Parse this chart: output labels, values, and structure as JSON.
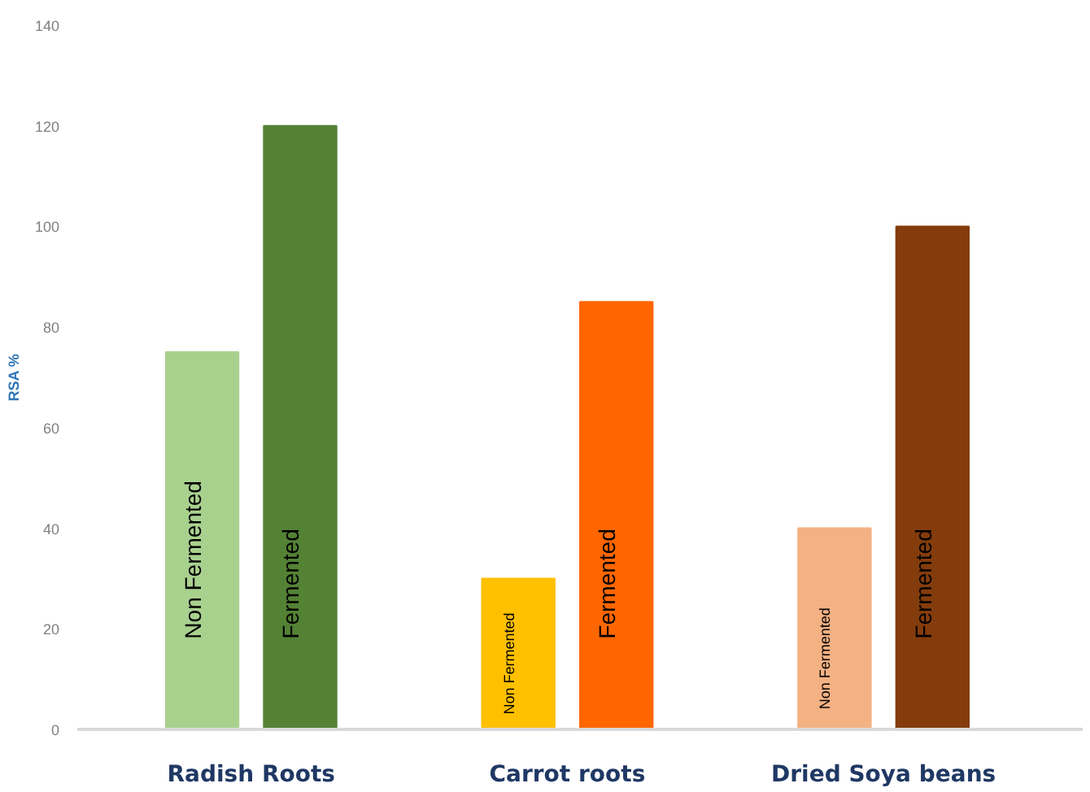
{
  "chart_data": {
    "type": "bar",
    "ylabel": "RSA %",
    "categories": [
      "Radish Roots",
      "Carrot roots",
      "Dried Soya beans"
    ],
    "series": [
      {
        "name": "Non Fermented",
        "colors": [
          "#a9d18e",
          "#ffc000",
          "#f4b183"
        ],
        "values": [
          75,
          30,
          40
        ]
      },
      {
        "name": "Fermented",
        "colors": [
          "#548235",
          "#ff6600",
          "#843c0c"
        ],
        "values": [
          120,
          85,
          100
        ]
      }
    ],
    "ylim": [
      0,
      140
    ],
    "yticks": [
      0,
      20,
      40,
      60,
      80,
      100,
      120,
      140
    ],
    "grid": false
  }
}
